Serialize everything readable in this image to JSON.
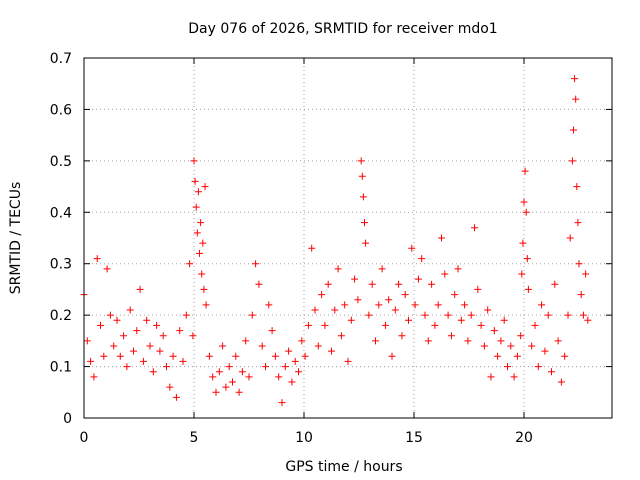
{
  "chart_data": {
    "type": "scatter",
    "title": "Day 076 of 2026, SRMTID for receiver mdo1",
    "xlabel": "GPS time / hours",
    "ylabel": "SRMTID / TECUs",
    "xlim": [
      0,
      24
    ],
    "ylim": [
      0,
      0.7
    ],
    "x_ticks": [
      0,
      5,
      10,
      15,
      20
    ],
    "x_tick_labels": [
      "0",
      "5",
      "10",
      "15",
      "20"
    ],
    "y_ticks": [
      0,
      0.1,
      0.2,
      0.3,
      0.4,
      0.5,
      0.6,
      0.7
    ],
    "y_tick_labels": [
      "0",
      "0.1",
      "0.2",
      "0.3",
      "0.4",
      "0.5",
      "0.6",
      "0.7"
    ],
    "grid": true,
    "marker": "plus",
    "color": "#ff0000",
    "series": [
      {
        "name": "SRMTID",
        "x": [
          0.0,
          0.15,
          0.3,
          0.45,
          0.6,
          0.75,
          0.9,
          1.05,
          1.2,
          1.35,
          1.5,
          1.65,
          1.8,
          1.95,
          2.1,
          2.25,
          2.4,
          2.55,
          2.7,
          2.85,
          3.0,
          3.15,
          3.3,
          3.45,
          3.6,
          3.75,
          3.9,
          4.05,
          4.2,
          4.35,
          4.5,
          4.65,
          4.8,
          4.95,
          5.0,
          5.05,
          5.1,
          5.15,
          5.2,
          5.25,
          5.3,
          5.35,
          5.4,
          5.45,
          5.5,
          5.55,
          5.7,
          5.85,
          6.0,
          6.15,
          6.3,
          6.45,
          6.6,
          6.75,
          6.9,
          7.05,
          7.2,
          7.35,
          7.5,
          7.65,
          7.8,
          7.95,
          8.1,
          8.25,
          8.4,
          8.55,
          8.7,
          8.85,
          9.0,
          9.15,
          9.3,
          9.45,
          9.6,
          9.75,
          9.9,
          10.05,
          10.2,
          10.35,
          10.5,
          10.65,
          10.8,
          10.95,
          11.1,
          11.25,
          11.4,
          11.55,
          11.7,
          11.85,
          12.0,
          12.15,
          12.3,
          12.45,
          12.6,
          12.65,
          12.7,
          12.75,
          12.8,
          12.95,
          13.1,
          13.25,
          13.4,
          13.55,
          13.7,
          13.85,
          14.0,
          14.15,
          14.3,
          14.45,
          14.6,
          14.75,
          14.9,
          15.05,
          15.2,
          15.35,
          15.5,
          15.65,
          15.8,
          15.95,
          16.1,
          16.25,
          16.4,
          16.55,
          16.7,
          16.85,
          17.0,
          17.15,
          17.3,
          17.45,
          17.6,
          17.75,
          17.9,
          18.05,
          18.2,
          18.35,
          18.5,
          18.65,
          18.8,
          18.95,
          19.1,
          19.25,
          19.4,
          19.55,
          19.7,
          19.85,
          19.9,
          19.95,
          20.0,
          20.05,
          20.1,
          20.15,
          20.2,
          20.35,
          20.5,
          20.65,
          20.8,
          20.95,
          21.1,
          21.25,
          21.4,
          21.55,
          21.7,
          21.85,
          22.0,
          22.1,
          22.2,
          22.25,
          22.3,
          22.35,
          22.4,
          22.45,
          22.5,
          22.6,
          22.7,
          22.8,
          22.9
        ],
        "values": [
          0.24,
          0.15,
          0.11,
          0.08,
          0.31,
          0.18,
          0.12,
          0.29,
          0.2,
          0.14,
          0.19,
          0.12,
          0.16,
          0.1,
          0.21,
          0.13,
          0.17,
          0.25,
          0.11,
          0.19,
          0.14,
          0.09,
          0.18,
          0.13,
          0.16,
          0.1,
          0.06,
          0.12,
          0.04,
          0.17,
          0.11,
          0.2,
          0.3,
          0.16,
          0.5,
          0.46,
          0.41,
          0.36,
          0.44,
          0.32,
          0.38,
          0.28,
          0.34,
          0.25,
          0.45,
          0.22,
          0.12,
          0.08,
          0.05,
          0.09,
          0.14,
          0.06,
          0.1,
          0.07,
          0.12,
          0.05,
          0.09,
          0.15,
          0.08,
          0.2,
          0.3,
          0.26,
          0.14,
          0.1,
          0.22,
          0.17,
          0.12,
          0.08,
          0.03,
          0.1,
          0.13,
          0.07,
          0.11,
          0.09,
          0.15,
          0.12,
          0.18,
          0.33,
          0.21,
          0.14,
          0.24,
          0.18,
          0.26,
          0.13,
          0.21,
          0.29,
          0.16,
          0.22,
          0.11,
          0.19,
          0.27,
          0.23,
          0.5,
          0.47,
          0.43,
          0.38,
          0.34,
          0.2,
          0.26,
          0.15,
          0.22,
          0.29,
          0.18,
          0.23,
          0.12,
          0.21,
          0.26,
          0.16,
          0.24,
          0.19,
          0.33,
          0.22,
          0.27,
          0.31,
          0.2,
          0.15,
          0.26,
          0.18,
          0.22,
          0.35,
          0.28,
          0.2,
          0.16,
          0.24,
          0.29,
          0.19,
          0.22,
          0.15,
          0.2,
          0.37,
          0.25,
          0.18,
          0.14,
          0.21,
          0.08,
          0.17,
          0.12,
          0.15,
          0.19,
          0.1,
          0.14,
          0.08,
          0.12,
          0.16,
          0.28,
          0.34,
          0.42,
          0.48,
          0.4,
          0.31,
          0.25,
          0.14,
          0.18,
          0.1,
          0.22,
          0.13,
          0.2,
          0.09,
          0.26,
          0.15,
          0.07,
          0.12,
          0.2,
          0.35,
          0.5,
          0.56,
          0.66,
          0.62,
          0.45,
          0.38,
          0.3,
          0.24,
          0.2,
          0.28,
          0.19
        ]
      }
    ]
  }
}
